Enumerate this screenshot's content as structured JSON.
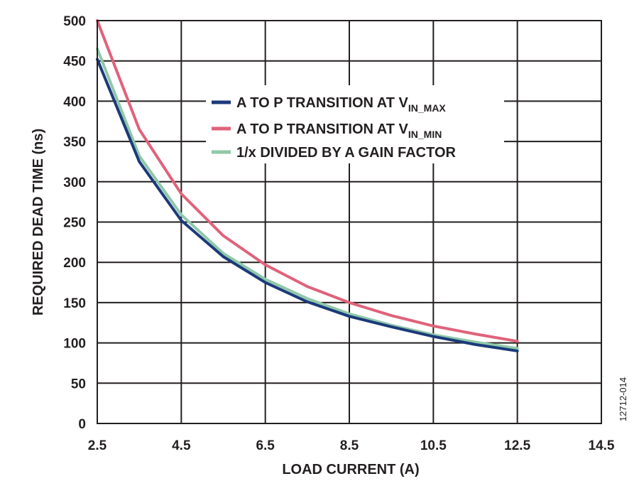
{
  "chart_data": {
    "type": "line",
    "xlabel": "LOAD CURRENT (A)",
    "ylabel": "REQUIRED DEAD TIME (ns)",
    "xlim": [
      2.5,
      14.5
    ],
    "ylim": [
      0,
      500
    ],
    "x_ticks": [
      2.5,
      4.5,
      6.5,
      8.5,
      10.5,
      12.5,
      14.5
    ],
    "x_tick_labels": [
      "2.5",
      "4.5",
      "6.5",
      "8.5",
      "10.5",
      "12.5",
      "14.5"
    ],
    "y_ticks": [
      0,
      50,
      100,
      150,
      200,
      250,
      300,
      350,
      400,
      450,
      500
    ],
    "y_tick_labels": [
      "0",
      "50",
      "100",
      "150",
      "200",
      "250",
      "300",
      "350",
      "400",
      "450",
      "500"
    ],
    "grid": true,
    "legend_position": "upper-right",
    "figure_id": "12712-014",
    "series": [
      {
        "name": "A TO P TRANSITION AT V",
        "name_subscript": "IN_MAX",
        "color": "#1b3a7a",
        "x": [
          2.5,
          3.5,
          4.5,
          5.5,
          6.5,
          7.5,
          8.5,
          9.5,
          10.5,
          11.5,
          12.5
        ],
        "y": [
          452,
          325,
          252,
          207,
          175,
          151,
          133,
          120,
          108,
          98,
          90
        ]
      },
      {
        "name": "A TO P TRANSITION AT V",
        "name_subscript": "IN_MIN",
        "color": "#e0627a",
        "x": [
          2.5,
          3.5,
          4.5,
          5.5,
          6.5,
          7.5,
          8.5,
          9.5,
          10.5,
          11.5,
          12.5
        ],
        "y": [
          500,
          365,
          285,
          233,
          197,
          170,
          150,
          134,
          121,
          111,
          102
        ]
      },
      {
        "name": "1/x DIVIDED BY A GAIN FACTOR",
        "name_subscript": "",
        "color": "#8fc9a8",
        "x": [
          2.5,
          3.5,
          4.5,
          5.5,
          6.5,
          7.5,
          8.5,
          9.5,
          10.5,
          11.5,
          12.5
        ],
        "y": [
          465,
          332,
          259,
          211,
          179,
          155,
          136,
          122,
          110,
          101,
          93
        ]
      }
    ]
  }
}
